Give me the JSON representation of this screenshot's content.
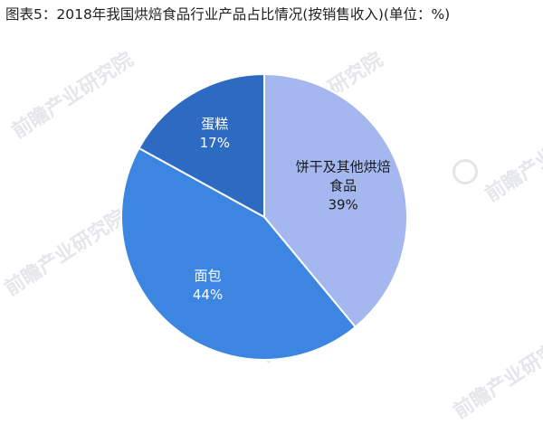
{
  "title": "图表5：2018年我国烘焙食品行业产品占比情况(按销售收入)(单位：%)",
  "watermark": {
    "text": "前瞻产业研究院"
  },
  "chart_data": {
    "type": "pie",
    "title": "图表5：2018年我国烘焙食品行业产品占比情况(按销售收入)(单位：%)",
    "slices": [
      {
        "label": "饼干及其他烘焙食品",
        "label_lines": [
          "饼干及其他烘焙",
          "食品"
        ],
        "value": 39,
        "value_label": "39%",
        "color": "#a4b8ef"
      },
      {
        "label": "面包",
        "label_lines": [
          "面包"
        ],
        "value": 44,
        "value_label": "44%",
        "color": "#3c86e2"
      },
      {
        "label": "蛋糕",
        "label_lines": [
          "蛋糕"
        ],
        "value": 17,
        "value_label": "17%",
        "color": "#2d6bc2"
      }
    ],
    "start_angle_deg": 0,
    "direction": "clockwise"
  }
}
